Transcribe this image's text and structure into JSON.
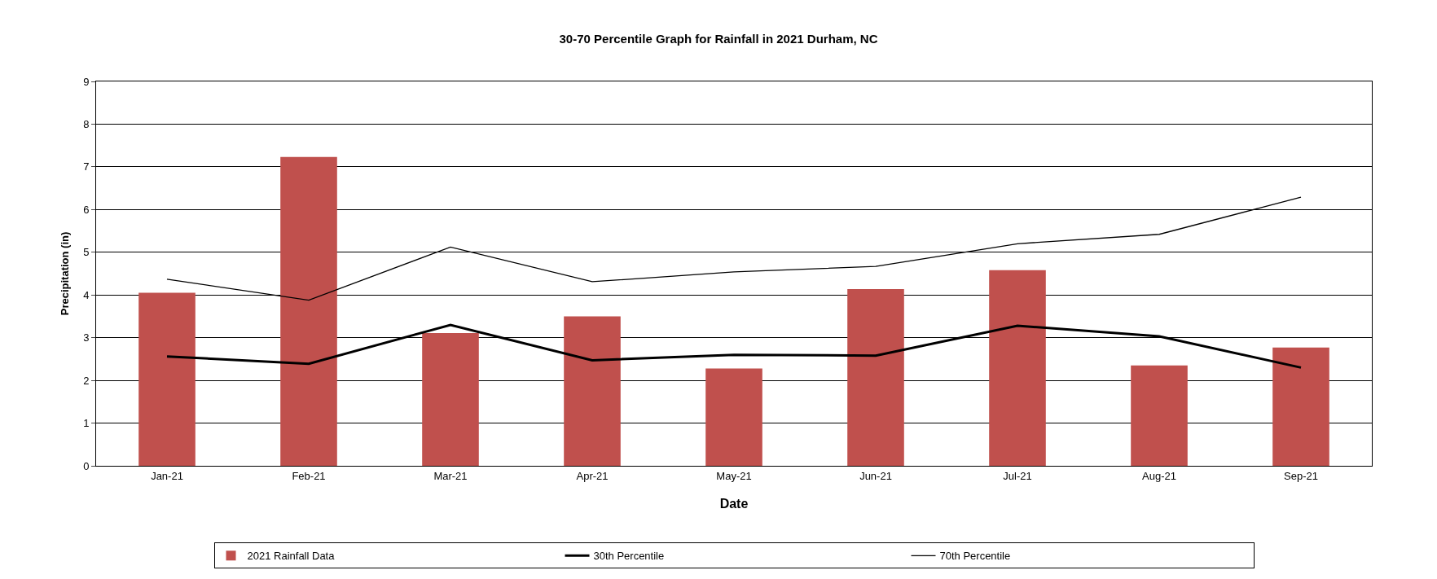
{
  "chart_data": {
    "type": "bar",
    "title": "30-70 Percentile Graph for Rainfall in 2021 Durham, NC",
    "xlabel": "Date",
    "ylabel": "Precipitation (in)",
    "categories": [
      "Jan-21",
      "Feb-21",
      "Mar-21",
      "Apr-21",
      "May-21",
      "Jun-21",
      "Jul-21",
      "Aug-21",
      "Sep-21"
    ],
    "series": [
      {
        "name": "2021 Rainfall Data",
        "color": "#c0504d",
        "values": [
          4.05,
          7.23,
          3.11,
          3.5,
          2.28,
          4.14,
          4.58,
          2.35,
          2.77
        ]
      },
      {
        "name": "30th Percentile",
        "type": "line",
        "color": "#000000",
        "values": [
          2.56,
          2.39,
          3.3,
          2.47,
          2.6,
          2.58,
          3.28,
          3.03,
          2.3
        ]
      },
      {
        "name": "70th Percentile",
        "type": "line",
        "color": "#000000",
        "values": [
          4.37,
          3.88,
          5.12,
          4.31,
          4.54,
          4.67,
          5.2,
          5.42,
          6.29
        ]
      }
    ],
    "ylim": [
      0,
      9
    ],
    "yticks": [
      0,
      1,
      2,
      3,
      4,
      5,
      6,
      7,
      8,
      9
    ],
    "grid": "y",
    "legend": "bottom",
    "marker": "none",
    "line_style": "solid"
  }
}
